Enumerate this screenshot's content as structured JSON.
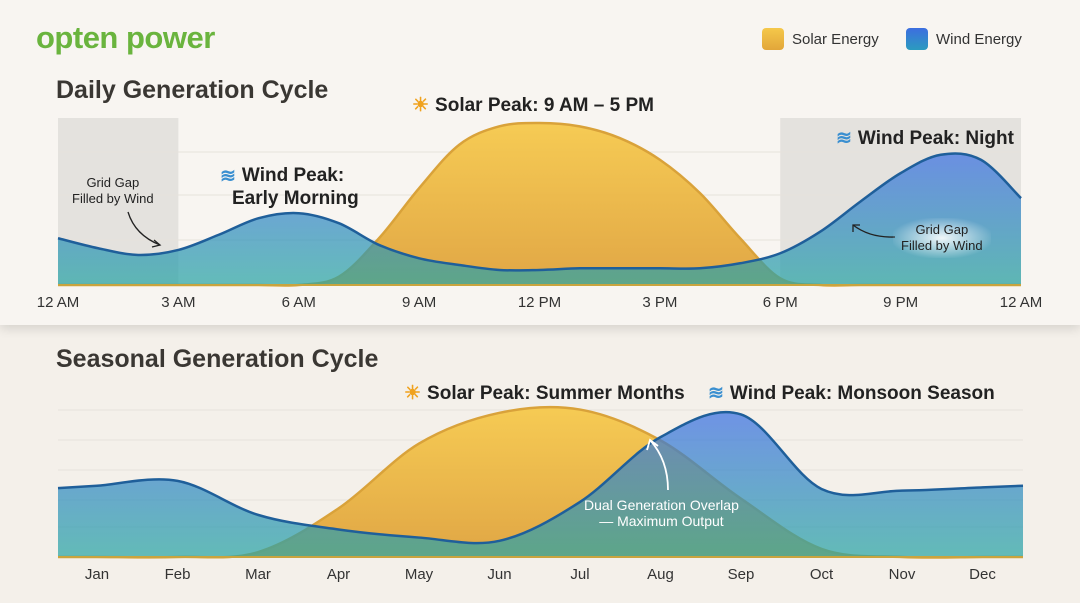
{
  "brand": {
    "logo_text": "opten power"
  },
  "legend": [
    {
      "label": "Solar Energy",
      "color": "#f0bd3f"
    },
    {
      "label": "Wind Energy",
      "color": "#3a72de"
    }
  ],
  "daily": {
    "title": "Daily Generation Cycle",
    "annotations": {
      "solar_peak": "Solar Peak: 9 AM – 5 PM",
      "wind_morning_1": "Wind Peak:",
      "wind_morning_2": "Early Morning",
      "wind_night": "Wind Peak: Night",
      "gap_left_1": "Grid Gap",
      "gap_left_2": "Filled by Wind",
      "gap_right_1": "Grid Gap",
      "gap_right_2": "Filled by Wind"
    }
  },
  "seasonal": {
    "title": "Seasonal Generation Cycle",
    "annotations": {
      "solar_peak": "Solar Peak: Summer Months",
      "wind_peak": "Wind Peak: Monsoon Season",
      "overlap_1": "Dual Generation Overlap",
      "overlap_2": "— Maximum Output"
    }
  },
  "chart_data": [
    {
      "type": "area",
      "title": "Daily Generation Cycle",
      "xlabel": "",
      "ylabel": "",
      "grid": true,
      "legend": "top-right",
      "x": [
        0,
        1,
        2,
        3,
        4,
        5,
        6,
        7,
        8,
        9,
        10,
        11,
        12,
        13,
        14,
        15,
        16,
        17,
        18,
        19,
        20,
        21,
        22,
        23,
        24
      ],
      "tick_labels": [
        "12 AM",
        "3 AM",
        "6 AM",
        "9 AM",
        "12 PM",
        "3 PM",
        "6 PM",
        "9 PM",
        "12 AM"
      ],
      "shaded_ranges_hours": [
        [
          0,
          3
        ],
        [
          18,
          24
        ]
      ],
      "ylim": [
        0,
        100
      ],
      "series": [
        {
          "name": "Solar Energy",
          "values": [
            0,
            0,
            0,
            0,
            0,
            0,
            0,
            5,
            28,
            58,
            84,
            95,
            97,
            95,
            88,
            75,
            55,
            28,
            4,
            0,
            0,
            0,
            0,
            0,
            0
          ]
        },
        {
          "name": "Wind Energy",
          "values": [
            28,
            22,
            18,
            21,
            30,
            40,
            43,
            37,
            24,
            16,
            12,
            9,
            9,
            10,
            10,
            10,
            10,
            13,
            19,
            32,
            50,
            67,
            78,
            75,
            52
          ]
        }
      ]
    },
    {
      "type": "area",
      "title": "Seasonal Generation Cycle",
      "xlabel": "",
      "ylabel": "",
      "grid": true,
      "categories": [
        "Jan",
        "Feb",
        "Mar",
        "Apr",
        "May",
        "Jun",
        "Jul",
        "Aug",
        "Sep",
        "Oct",
        "Nov",
        "Dec"
      ],
      "ylim": [
        0,
        100
      ],
      "series": [
        {
          "name": "Solar Energy",
          "values": [
            0,
            0,
            3,
            30,
            70,
            89,
            91,
            72,
            36,
            5,
            0,
            0
          ]
        },
        {
          "name": "Wind Energy",
          "values": [
            44,
            47,
            26,
            17,
            12,
            10,
            34,
            74,
            88,
            42,
            41,
            43
          ]
        }
      ]
    }
  ]
}
